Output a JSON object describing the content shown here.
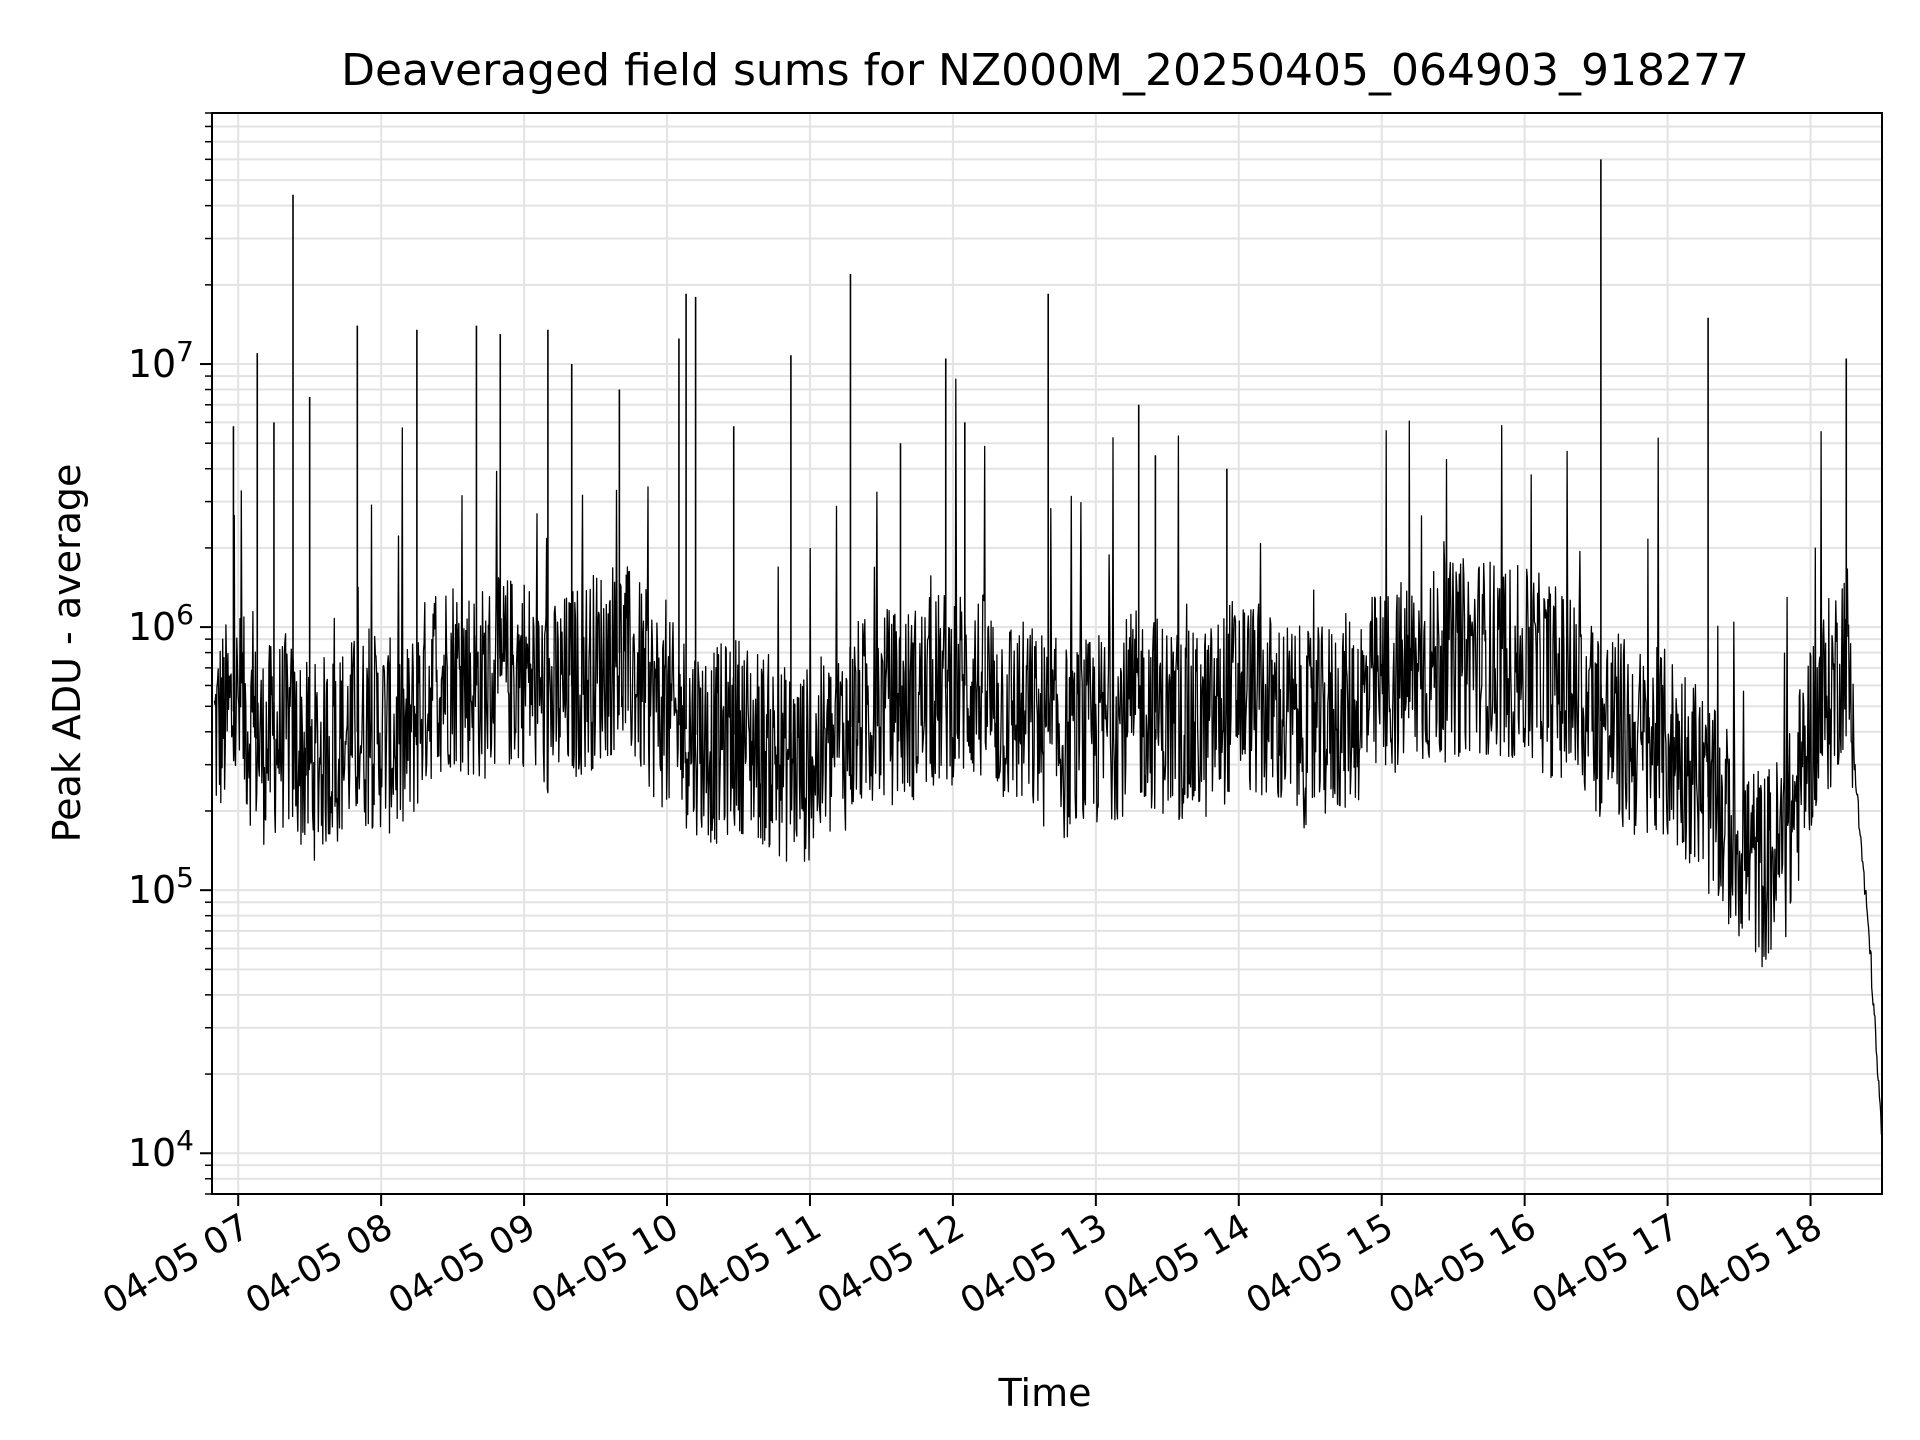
{
  "chart_data": {
    "type": "line",
    "title": "Deaveraged field sums for NZ000M_20250405_064903_918277",
    "xlabel": "Time",
    "ylabel": "Peak ADU - average",
    "x_scale": "time",
    "y_scale": "log",
    "x_range": [
      "04-05 06:49",
      "04-05 18:30"
    ],
    "ylim": [
      7000,
      90000000
    ],
    "grid": true,
    "legend": "none",
    "line_color": "#000000",
    "grid_color": "#e3e3e3",
    "x_ticks": [
      {
        "value": "04-05 07:00",
        "label": "04-05 07"
      },
      {
        "value": "04-05 08:00",
        "label": "04-05 08"
      },
      {
        "value": "04-05 09:00",
        "label": "04-05 09"
      },
      {
        "value": "04-05 10:00",
        "label": "04-05 10"
      },
      {
        "value": "04-05 11:00",
        "label": "04-05 11"
      },
      {
        "value": "04-05 12:00",
        "label": "04-05 12"
      },
      {
        "value": "04-05 13:00",
        "label": "04-05 13"
      },
      {
        "value": "04-05 14:00",
        "label": "04-05 14"
      },
      {
        "value": "04-05 15:00",
        "label": "04-05 15"
      },
      {
        "value": "04-05 16:00",
        "label": "04-05 16"
      },
      {
        "value": "04-05 17:00",
        "label": "04-05 17"
      },
      {
        "value": "04-05 18:00",
        "label": "04-05 18"
      }
    ],
    "y_ticks": [
      {
        "value": 10000,
        "base": "10",
        "exp": "4"
      },
      {
        "value": 100000,
        "base": "10",
        "exp": "5"
      },
      {
        "value": 1000000,
        "base": "10",
        "exp": "6"
      },
      {
        "value": 10000000,
        "base": "10",
        "exp": "7"
      }
    ],
    "series": [
      {
        "x": [
          "04-05 06:50",
          "04-05 07:00",
          "04-05 07:10",
          "04-05 07:20",
          "04-05 07:30",
          "04-05 07:40",
          "04-05 07:50",
          "04-05 08:00",
          "04-05 08:10",
          "04-05 08:20",
          "04-05 08:30",
          "04-05 08:40",
          "04-05 08:50",
          "04-05 09:00",
          "04-05 09:10",
          "04-05 09:20",
          "04-05 09:30",
          "04-05 09:40",
          "04-05 09:50",
          "04-05 10:00",
          "04-05 10:10",
          "04-05 10:20",
          "04-05 10:30",
          "04-05 10:40",
          "04-05 10:50",
          "04-05 11:00",
          "04-05 11:10",
          "04-05 11:20",
          "04-05 11:30",
          "04-05 11:40",
          "04-05 11:50",
          "04-05 12:00",
          "04-05 12:10",
          "04-05 12:20",
          "04-05 12:30",
          "04-05 12:40",
          "04-05 12:50",
          "04-05 13:00",
          "04-05 13:10",
          "04-05 13:20",
          "04-05 13:30",
          "04-05 13:40",
          "04-05 13:50",
          "04-05 14:00",
          "04-05 14:10",
          "04-05 14:20",
          "04-05 14:30",
          "04-05 14:40",
          "04-05 14:50",
          "04-05 15:00",
          "04-05 15:10",
          "04-05 15:20",
          "04-05 15:30",
          "04-05 15:40",
          "04-05 15:50",
          "04-05 16:00",
          "04-05 16:10",
          "04-05 16:20",
          "04-05 16:30",
          "04-05 16:40",
          "04-05 16:50",
          "04-05 17:00",
          "04-05 17:10",
          "04-05 17:20",
          "04-05 17:30",
          "04-05 17:40",
          "04-05 17:50",
          "04-05 18:00",
          "04-05 18:10",
          "04-05 18:15",
          "04-05 18:20",
          "04-05 18:25",
          "04-05 18:30"
        ],
        "y": [
          400000,
          500000,
          350000,
          400000,
          300000,
          350000,
          400000,
          400000,
          350000,
          600000,
          700000,
          600000,
          650000,
          700000,
          500000,
          600000,
          700000,
          800000,
          600000,
          450000,
          400000,
          350000,
          400000,
          350000,
          300000,
          300000,
          350000,
          450000,
          500000,
          500000,
          550000,
          600000,
          600000,
          500000,
          450000,
          400000,
          350000,
          400000,
          450000,
          500000,
          450000,
          400000,
          450000,
          600000,
          500000,
          450000,
          400000,
          450000,
          500000,
          600000,
          650000,
          700000,
          750000,
          800000,
          750000,
          700000,
          650000,
          550000,
          450000,
          400000,
          350000,
          350000,
          300000,
          200000,
          150000,
          120000,
          150000,
          400000,
          600000,
          900000,
          200000,
          60000,
          11000
        ]
      }
    ],
    "spikes": [
      {
        "x": "04-05 06:58",
        "y": 5800000
      },
      {
        "x": "04-05 07:08",
        "y": 11000000
      },
      {
        "x": "04-05 07:15",
        "y": 6000000
      },
      {
        "x": "04-05 07:23",
        "y": 44000000
      },
      {
        "x": "04-05 07:30",
        "y": 7500000
      },
      {
        "x": "04-05 07:50",
        "y": 14000000
      },
      {
        "x": "04-05 08:15",
        "y": 13500000
      },
      {
        "x": "04-05 08:40",
        "y": 14000000
      },
      {
        "x": "04-05 08:50",
        "y": 13000000
      },
      {
        "x": "04-05 09:10",
        "y": 13500000
      },
      {
        "x": "04-05 09:20",
        "y": 10000000
      },
      {
        "x": "04-05 09:40",
        "y": 8000000
      },
      {
        "x": "04-05 10:05",
        "y": 12500000
      },
      {
        "x": "04-05 10:08",
        "y": 18500000
      },
      {
        "x": "04-05 10:12",
        "y": 18000000
      },
      {
        "x": "04-05 10:28",
        "y": 5800000
      },
      {
        "x": "04-05 10:52",
        "y": 10800000
      },
      {
        "x": "04-05 11:17",
        "y": 22000000
      },
      {
        "x": "04-05 11:38",
        "y": 5000000
      },
      {
        "x": "04-05 11:57",
        "y": 10500000
      },
      {
        "x": "04-05 12:05",
        "y": 6000000
      },
      {
        "x": "04-05 12:40",
        "y": 18500000
      },
      {
        "x": "04-05 13:18",
        "y": 7000000
      },
      {
        "x": "04-05 13:25",
        "y": 4500000
      },
      {
        "x": "04-05 13:55",
        "y": 4000000
      },
      {
        "x": "04-05 16:32",
        "y": 60000000
      },
      {
        "x": "04-05 17:17",
        "y": 15000000
      },
      {
        "x": "04-05 18:15",
        "y": 10500000
      }
    ]
  }
}
